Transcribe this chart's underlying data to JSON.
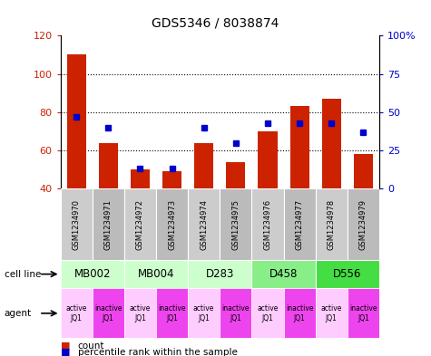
{
  "title": "GDS5346 / 8038874",
  "samples": [
    "GSM1234970",
    "GSM1234971",
    "GSM1234972",
    "GSM1234973",
    "GSM1234974",
    "GSM1234975",
    "GSM1234976",
    "GSM1234977",
    "GSM1234978",
    "GSM1234979"
  ],
  "counts": [
    110,
    64,
    50,
    49,
    64,
    54,
    70,
    83,
    87,
    58
  ],
  "percentiles": [
    47,
    40,
    13,
    13,
    40,
    30,
    43,
    43,
    43,
    37
  ],
  "ylim_left": [
    40,
    120
  ],
  "ylim_right": [
    0,
    100
  ],
  "yticks_left": [
    40,
    60,
    80,
    100,
    120
  ],
  "yticks_right": [
    0,
    25,
    50,
    75,
    100
  ],
  "cell_lines": [
    {
      "label": "MB002",
      "span": [
        0,
        2
      ],
      "color": "#ccffcc"
    },
    {
      "label": "MB004",
      "span": [
        2,
        4
      ],
      "color": "#ccffcc"
    },
    {
      "label": "D283",
      "span": [
        4,
        6
      ],
      "color": "#ccffcc"
    },
    {
      "label": "D458",
      "span": [
        6,
        8
      ],
      "color": "#88ee88"
    },
    {
      "label": "D556",
      "span": [
        8,
        10
      ],
      "color": "#44dd44"
    }
  ],
  "agents": [
    "active\nJQ1",
    "inactive\nJQ1",
    "active\nJQ1",
    "inactive\nJQ1",
    "active\nJQ1",
    "inactive\nJQ1",
    "active\nJQ1",
    "inactive\nJQ1",
    "active\nJQ1",
    "inactive\nJQ1"
  ],
  "agent_colors": [
    "#ffccff",
    "#ee44ee",
    "#ffccff",
    "#ee44ee",
    "#ffccff",
    "#ee44ee",
    "#ffccff",
    "#ee44ee",
    "#ffccff",
    "#ee44ee"
  ],
  "bar_color": "#cc2200",
  "dot_color": "#0000cc",
  "grid_color": "#000000",
  "left_axis_color": "#cc2200",
  "right_axis_color": "#0000cc",
  "sample_colors": [
    "#cccccc",
    "#bbbbbb",
    "#cccccc",
    "#bbbbbb",
    "#cccccc",
    "#bbbbbb",
    "#cccccc",
    "#bbbbbb",
    "#cccccc",
    "#bbbbbb"
  ]
}
